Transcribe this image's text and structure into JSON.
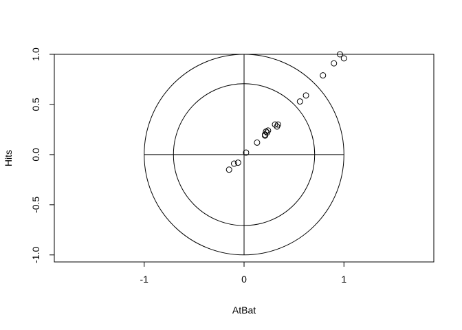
{
  "chart_data": {
    "type": "scatter",
    "title": "",
    "xlabel": "AtBat",
    "ylabel": "Hits",
    "xlim": [
      -1.9,
      1.9
    ],
    "ylim": [
      -1.07,
      1.0
    ],
    "xticks": [
      -1,
      0,
      1
    ],
    "xtick_labels": [
      "-1",
      "0",
      "1"
    ],
    "yticks": [
      -1.0,
      -0.5,
      0.0,
      0.5,
      1.0
    ],
    "ytick_labels": [
      "-1.0",
      "-0.5",
      "0.0",
      "0.5",
      "1.0"
    ],
    "grid": false,
    "circles": [
      {
        "center": [
          0,
          0
        ],
        "radius": 1.0
      },
      {
        "center": [
          0,
          0
        ],
        "radius": 0.7071
      }
    ],
    "reference_lines": [
      {
        "orientation": "horizontal",
        "value": 0,
        "from": -1,
        "to": 1
      },
      {
        "orientation": "vertical",
        "value": 0,
        "from": -1,
        "to": 1
      }
    ],
    "series": [
      {
        "marker": "open-circle",
        "x": [
          0.96,
          1.0,
          0.9,
          0.79,
          0.62,
          0.56,
          0.34,
          0.31,
          0.33,
          0.24,
          0.22,
          0.23,
          0.21,
          0.21,
          0.13,
          0.02,
          -0.06,
          -0.1,
          -0.15
        ],
        "y": [
          1.0,
          0.96,
          0.91,
          0.79,
          0.59,
          0.53,
          0.3,
          0.3,
          0.28,
          0.24,
          0.23,
          0.22,
          0.2,
          0.19,
          0.12,
          0.02,
          -0.08,
          -0.09,
          -0.15
        ]
      }
    ]
  }
}
